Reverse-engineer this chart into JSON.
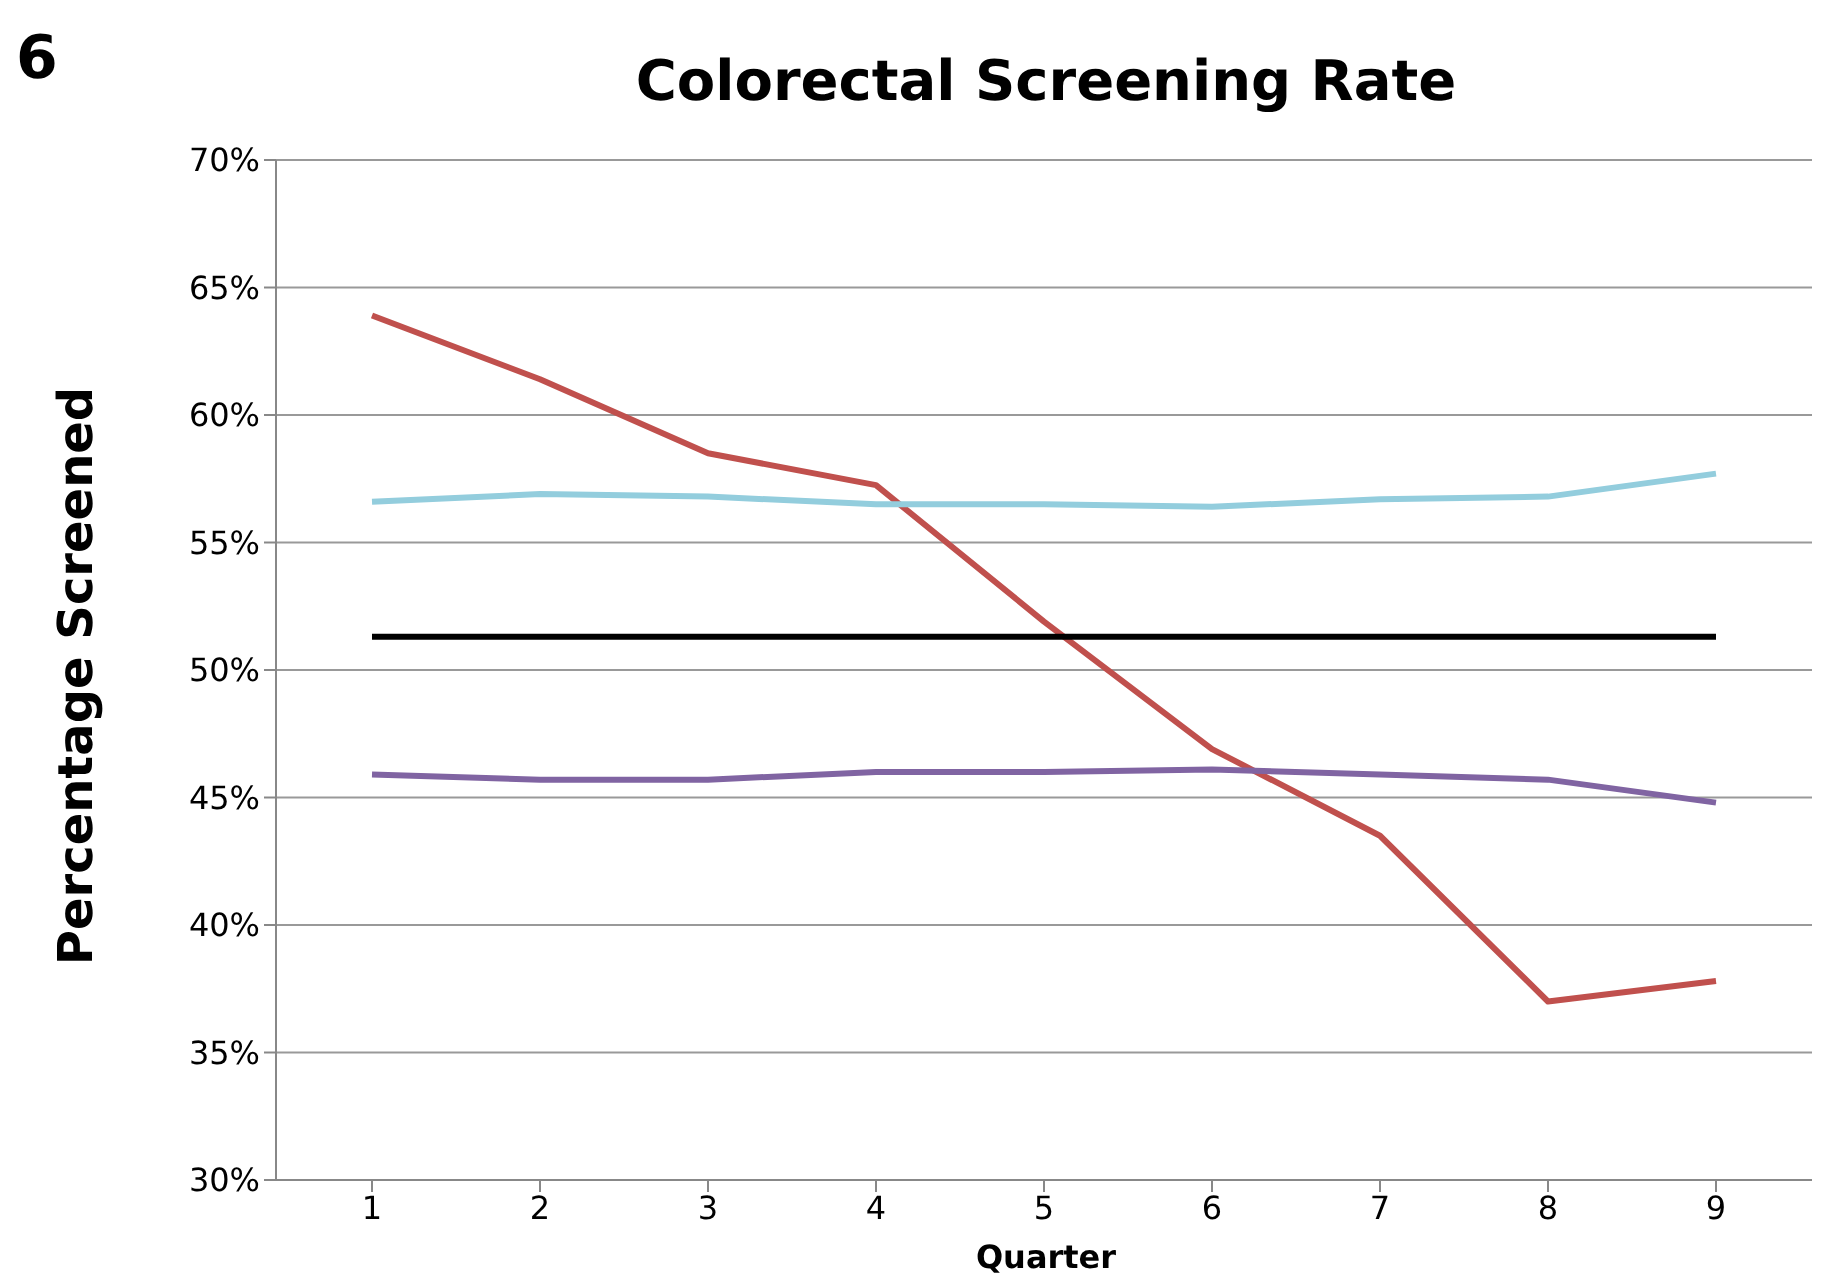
{
  "chart_data": {
    "type": "line",
    "title": "Colorectal Screening Rate",
    "xlabel": "Quarter",
    "ylabel": "Percentage Screened",
    "annotations": [
      "6"
    ],
    "categories": [
      "1",
      "2",
      "3",
      "4",
      "5",
      "6",
      "7",
      "8",
      "9"
    ],
    "series": [
      {
        "color": "#c0504d",
        "values": [
          63.9,
          61.4,
          58.5,
          57.25,
          51.9,
          46.9,
          43.5,
          37.0,
          37.8
        ]
      },
      {
        "color": "#93cddd",
        "values": [
          56.6,
          56.9,
          56.8,
          56.5,
          56.5,
          56.4,
          56.7,
          56.8,
          57.7
        ]
      },
      {
        "color": "#000000",
        "values": [
          51.3,
          51.3,
          51.3,
          51.3,
          51.3,
          51.3,
          51.3,
          51.3,
          51.3
        ]
      },
      {
        "color": "#8064a2",
        "values": [
          45.9,
          45.7,
          45.7,
          46.0,
          46.0,
          46.1,
          45.9,
          45.7,
          44.8
        ]
      }
    ],
    "ylim": [
      30,
      70
    ],
    "yticks": [
      {
        "value": 30,
        "label": "30%"
      },
      {
        "value": 35,
        "label": "35%"
      },
      {
        "value": 40,
        "label": "40%"
      },
      {
        "value": 45,
        "label": "45%"
      },
      {
        "value": 50,
        "label": "50%"
      },
      {
        "value": 55,
        "label": "55%"
      },
      {
        "value": 60,
        "label": "60%"
      },
      {
        "value": 65,
        "label": "65%"
      },
      {
        "value": 70,
        "label": "70%"
      }
    ],
    "grid": "y",
    "marker": "none",
    "line_style": "solid"
  }
}
